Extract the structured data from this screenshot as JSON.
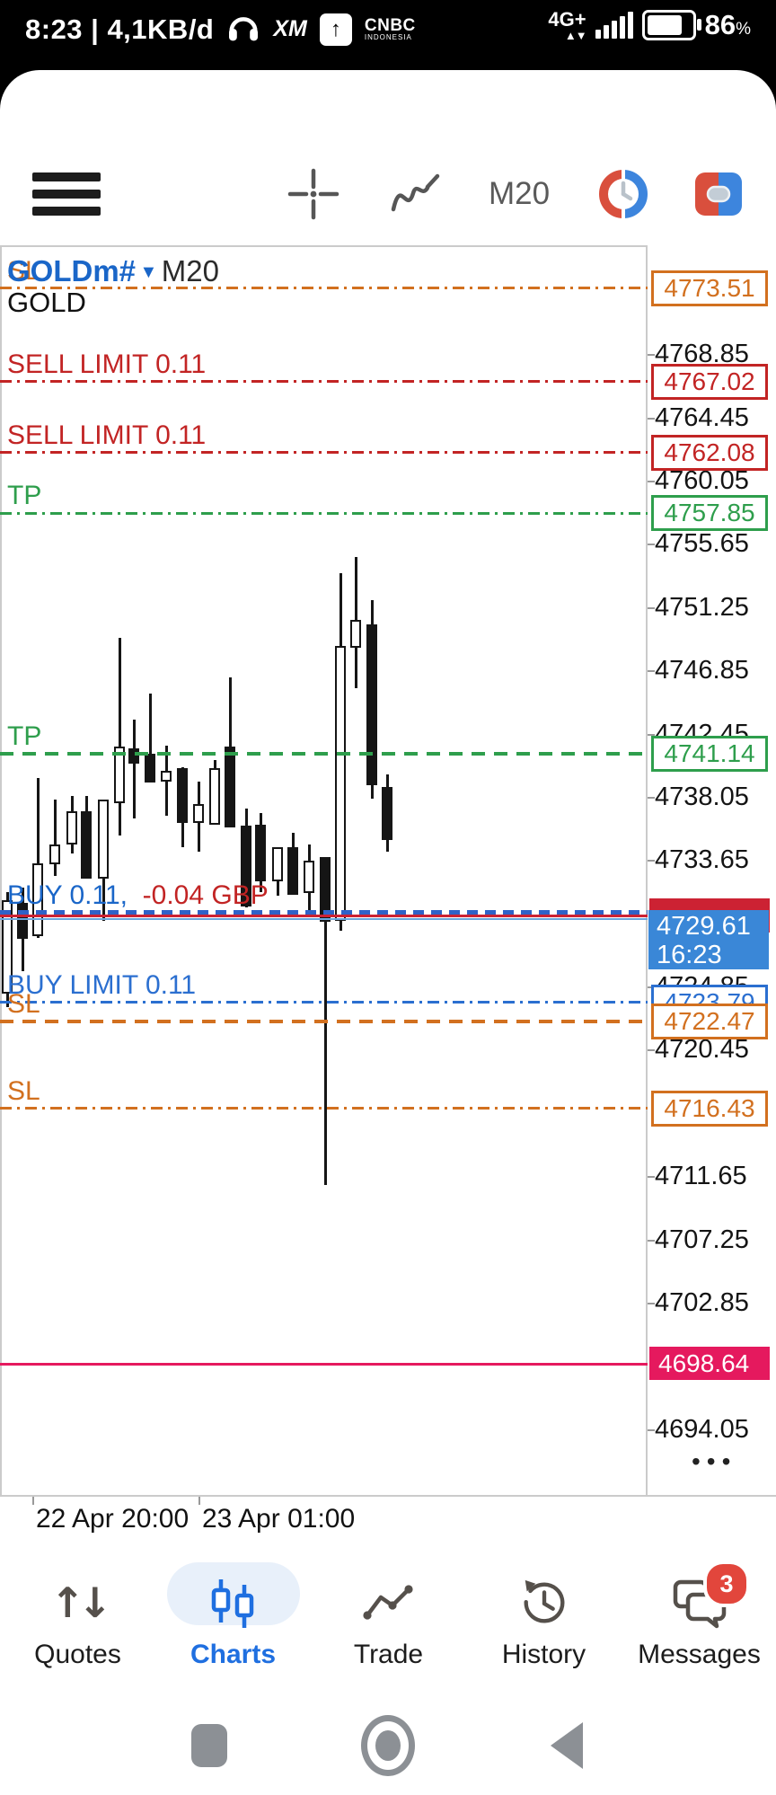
{
  "status_bar": {
    "left_text": "8:23 | 4,1KB/d",
    "xm_logo": "XM",
    "upload_arrow": "↑",
    "cnbc_line1": "CNBC",
    "cnbc_line2": "INDONESIA",
    "network": "4G+",
    "network_arrows": "▲▼",
    "battery_percent": "86",
    "percent_sign": "%"
  },
  "toolbar": {
    "timeframe": "M20",
    "icons": [
      "menu-icon",
      "crosshair-icon",
      "indicators-icon",
      "timeframe-button",
      "trading-sessions-icon",
      "one-click-trading-icon"
    ]
  },
  "chart": {
    "symbol": "GOLDm#",
    "dropdown_arrow": "▼",
    "timeframe": "M20",
    "symbol_name": "GOLD",
    "more_dots": "•••",
    "current": {
      "bid": "4729.61",
      "time": "16:23"
    },
    "chart_data": {
      "type": "candlestick",
      "title": "GOLDm# M20",
      "ylim": [
        4689.4,
        4776.5
      ],
      "grid": false,
      "y_ticks": [
        "4768.85",
        "4764.45",
        "4760.05",
        "4755.65",
        "4751.25",
        "4746.85",
        "4742.45",
        "4738.05",
        "4733.65",
        "4724.85",
        "4720.45",
        "4711.65",
        "4707.25",
        "4702.85",
        "4694.05"
      ],
      "x_ticks": [
        {
          "label": "22 Apr 20:00",
          "x": 36
        },
        {
          "label": "23 Apr 01:00",
          "x": 221
        }
      ],
      "candle_columns": [
        "x_px",
        "open",
        "high",
        "low",
        "close"
      ],
      "candles": [
        [
          8,
          4724.4,
          4731.5,
          4723.5,
          4730.9
        ],
        [
          25,
          4730.7,
          4731.8,
          4726.0,
          4728.2
        ],
        [
          42,
          4728.4,
          4739.4,
          4728.3,
          4733.5
        ],
        [
          61,
          4733.4,
          4737.9,
          4732.6,
          4734.8
        ],
        [
          80,
          4734.8,
          4738.2,
          4734.2,
          4737.1
        ],
        [
          96,
          4737.1,
          4738.2,
          4732.4,
          4732.4
        ],
        [
          115,
          4732.4,
          4737.9,
          4729.5,
          4737.9
        ],
        [
          133,
          4737.7,
          4749.2,
          4735.4,
          4741.6
        ],
        [
          149,
          4741.5,
          4743.5,
          4736.6,
          4740.4
        ],
        [
          167,
          4741.1,
          4745.3,
          4739.1,
          4739.1
        ],
        [
          185,
          4739.2,
          4741.7,
          4736.8,
          4739.9
        ],
        [
          203,
          4740.1,
          4740.2,
          4734.6,
          4736.3
        ],
        [
          221,
          4736.3,
          4739.2,
          4734.3,
          4737.6
        ],
        [
          239,
          4736.2,
          4740.7,
          4736.2,
          4740.1
        ],
        [
          256,
          4741.6,
          4746.4,
          4736.0,
          4736.0
        ],
        [
          274,
          4736.1,
          4737.3,
          4730.4,
          4730.5
        ],
        [
          290,
          4736.2,
          4737.0,
          4731.5,
          4732.2
        ],
        [
          309,
          4732.2,
          4734.6,
          4731.2,
          4734.6
        ],
        [
          326,
          4734.6,
          4735.6,
          4731.3,
          4731.3
        ],
        [
          344,
          4731.4,
          4734.8,
          4729.9,
          4733.7
        ],
        [
          362,
          4733.9,
          4733.9,
          4711.1,
          4729.4
        ],
        [
          379,
          4729.5,
          4753.7,
          4728.8,
          4748.6
        ],
        [
          396,
          4748.5,
          4754.8,
          4745.7,
          4750.4
        ],
        [
          414,
          4750.1,
          4751.8,
          4738.0,
          4738.9
        ],
        [
          431,
          4738.8,
          4739.7,
          4734.3,
          4735.1
        ]
      ],
      "bid_time": "16:23",
      "levels": [
        {
          "name": "pending-sl-line",
          "label": "SL",
          "price": 4773.51,
          "color": "#d2701f",
          "style": "dashdot",
          "box": "outline"
        },
        {
          "name": "sell-limit-line",
          "label": "SELL LIMIT 0.11",
          "price": 4767.02,
          "color": "#c22424",
          "style": "dashdot",
          "box": "outline"
        },
        {
          "name": "sell-limit-line-2",
          "label": "SELL LIMIT 0.11",
          "price": 4762.08,
          "color": "#c22424",
          "style": "dashdot",
          "box": "outline"
        },
        {
          "name": "pending-tp-line",
          "label": "TP",
          "price": 4757.85,
          "color": "#2e9e4c",
          "style": "dashdot",
          "box": "outline"
        },
        {
          "name": "position-tp-line",
          "label": "TP",
          "price": 4741.14,
          "color": "#2e9e4c",
          "style": "dashed",
          "box": "outline"
        },
        {
          "name": "buy-position-line",
          "label": "BUY 0.11,",
          "label2": "-0.04 GBP",
          "label_color": "#1a66c8",
          "label2_color": "#c22424",
          "price": 4730.05,
          "color": "#2f62c8",
          "style": "dashed-thick",
          "box": "none"
        },
        {
          "name": "ask-line",
          "price": 4729.8,
          "color": "#cc2233",
          "style": "solid",
          "thickness": 3,
          "box": "strip"
        },
        {
          "name": "bid-line",
          "price": 4729.61,
          "color": "#6aa5dd",
          "style": "solid",
          "thickness": 2,
          "box": "bid"
        },
        {
          "name": "buy-limit-line",
          "label": "BUY LIMIT 0.11",
          "price": 4723.79,
          "color": "#2b6fd0",
          "style": "dashdot",
          "box": "outline"
        },
        {
          "name": "position-sl-line",
          "label": "SL",
          "price": 4722.47,
          "color": "#d2701f",
          "style": "dashed",
          "box": "outline"
        },
        {
          "name": "pending-sl-line-2",
          "label": "SL",
          "price": 4716.43,
          "color": "#d2701f",
          "style": "dashdot",
          "box": "outline"
        },
        {
          "name": "price-hline",
          "price": 4698.64,
          "color": "#e5195e",
          "style": "solid",
          "thickness": 3,
          "box": "filled"
        }
      ]
    }
  },
  "bottom_nav": {
    "items": [
      {
        "label": "Quotes",
        "icon": "quotes-arrows-icon",
        "active": false,
        "badge": null
      },
      {
        "label": "Charts",
        "icon": "charts-candles-icon",
        "active": true,
        "badge": null
      },
      {
        "label": "Trade",
        "icon": "trade-line-icon",
        "active": false,
        "badge": null
      },
      {
        "label": "History",
        "icon": "history-clock-icon",
        "active": false,
        "badge": null
      },
      {
        "label": "Messages",
        "icon": "messages-chat-icon",
        "active": false,
        "badge": "3"
      }
    ]
  },
  "android_nav": {
    "buttons": [
      "recents",
      "home",
      "back"
    ]
  }
}
